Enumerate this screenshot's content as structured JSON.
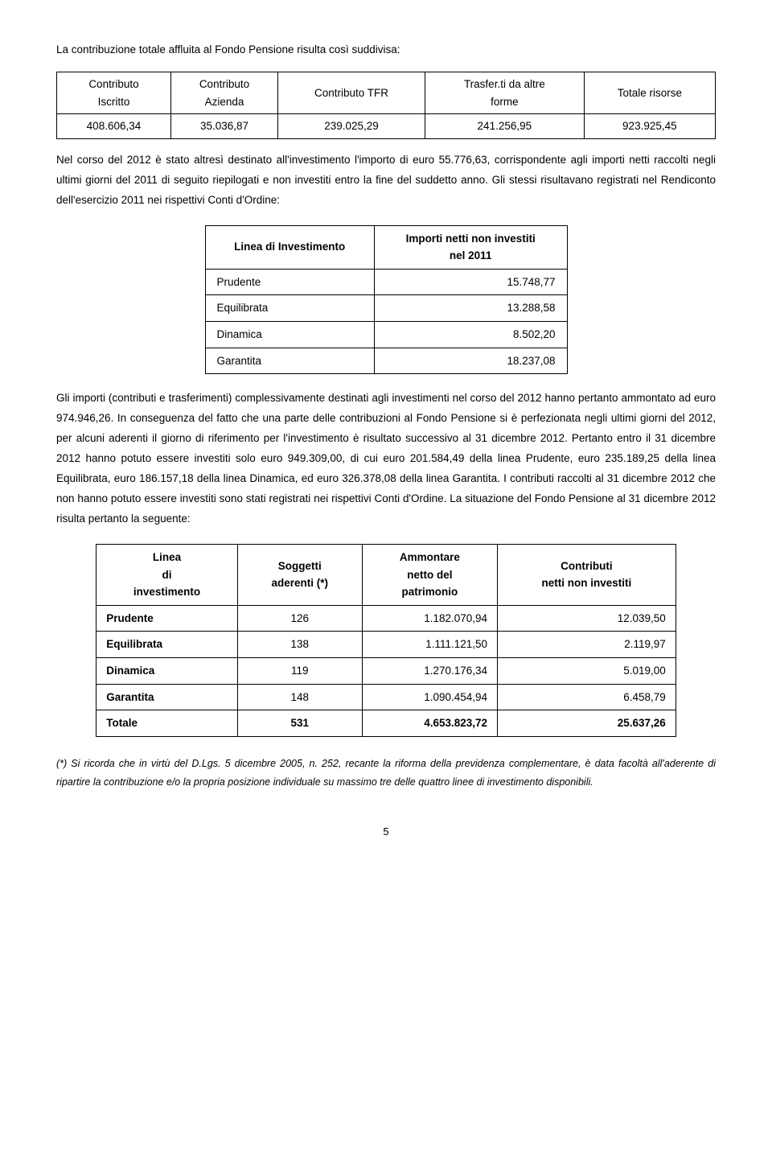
{
  "intro": "La contribuzione totale affluita al Fondo Pensione risulta così suddivisa:",
  "table1": {
    "headers": {
      "c1a": "Contributo",
      "c1b": "Iscritto",
      "c2a": "Contributo",
      "c2b": "Azienda",
      "c3": "Contributo TFR",
      "c4a": "Trasfer.ti da altre",
      "c4b": "forme",
      "c5": "Totale risorse"
    },
    "row": [
      "408.606,34",
      "35.036,87",
      "239.025,29",
      "241.256,95",
      "923.925,45"
    ]
  },
  "para1": "Nel corso del 2012 è stato altresì destinato all'investimento l'importo di euro 55.776,63, corrispondente agli importi netti raccolti negli ultimi giorni del 2011 di seguito riepilogati e non investiti entro la fine del suddetto anno. Gli stessi risultavano registrati nel Rendiconto dell'esercizio 2011 nei rispettivi Conti d'Ordine:",
  "table2": {
    "h1": "Linea di Investimento",
    "h2a": "Importi netti non investiti",
    "h2b": "nel 2011",
    "rows": [
      [
        "Prudente",
        "15.748,77"
      ],
      [
        "Equilibrata",
        "13.288,58"
      ],
      [
        "Dinamica",
        "8.502,20"
      ],
      [
        "Garantita",
        "18.237,08"
      ]
    ]
  },
  "para2": "Gli importi (contributi e trasferimenti) complessivamente destinati agli investimenti nel corso del 2012 hanno pertanto ammontato ad euro 974.946,26. In conseguenza del fatto che una parte delle contribuzioni al Fondo Pensione si è perfezionata negli ultimi giorni del 2012, per alcuni aderenti il giorno di riferimento per l'investimento è risultato successivo al 31 dicembre 2012. Pertanto entro il 31 dicembre 2012 hanno potuto essere investiti solo euro 949.309,00, di cui euro 201.584,49 della linea Prudente, euro 235.189,25 della linea Equilibrata, euro 186.157,18 della linea Dinamica, ed euro 326.378,08 della linea Garantita. I contributi raccolti al 31 dicembre 2012 che non hanno potuto essere investiti sono stati registrati nei rispettivi Conti d'Ordine. La situazione del Fondo Pensione al 31 dicembre 2012 risulta pertanto la seguente:",
  "table3": {
    "h1a": "Linea",
    "h1b": "di",
    "h1c": "investimento",
    "h2a": "Soggetti",
    "h2b": "aderenti (*)",
    "h3a": "Ammontare",
    "h3b": "netto del",
    "h3c": "patrimonio",
    "h4a": "Contributi",
    "h4b": "netti non investiti",
    "rows": [
      [
        "Prudente",
        "126",
        "1.182.070,94",
        "12.039,50"
      ],
      [
        "Equilibrata",
        "138",
        "1.111.121,50",
        "2.119,97"
      ],
      [
        "Dinamica",
        "119",
        "1.270.176,34",
        "5.019,00"
      ],
      [
        "Garantita",
        "148",
        "1.090.454,94",
        "6.458,79"
      ],
      [
        "Totale",
        "531",
        "4.653.823,72",
        "25.637,26"
      ]
    ]
  },
  "footnote": "(*) Si ricorda che in virtù del D.Lgs. 5 dicembre 2005, n. 252, recante la riforma della previdenza complementare, è data facoltà all'aderente di ripartire la contribuzione e/o la propria posizione individuale su massimo tre delle quattro linee di investimento disponibili.",
  "page": "5"
}
